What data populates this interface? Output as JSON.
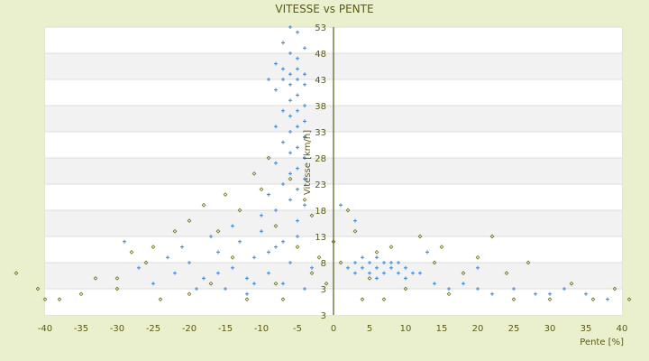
{
  "chart_data": {
    "type": "scatter",
    "title": "VITESSE vs PENTE",
    "xlabel": "Pente [%]",
    "ylabel": "Vitesse [km/h]",
    "xlim": [
      -40,
      40
    ],
    "ylim": [
      -2,
      53
    ],
    "x_ticks": [
      "-40",
      "-35",
      "-30",
      "-25",
      "-20",
      "-15",
      "-10",
      "-5",
      "0",
      "5",
      "10",
      "15",
      "20",
      "25",
      "30",
      "35",
      "40"
    ],
    "y_ticks": [
      "53",
      "48",
      "43",
      "38",
      "33",
      "28",
      "23",
      "18",
      "13",
      "8",
      "3",
      "3"
    ],
    "grid": true,
    "series": [
      {
        "name": "blue",
        "color": "#3a86d6",
        "marker": "plus",
        "points": [
          [
            -6,
            53
          ],
          [
            -5,
            52
          ],
          [
            -7,
            50
          ],
          [
            -4,
            49
          ],
          [
            -6,
            48
          ],
          [
            -5,
            47
          ],
          [
            -8,
            46
          ],
          [
            -7,
            45
          ],
          [
            -5,
            45
          ],
          [
            -6,
            44
          ],
          [
            -4,
            44
          ],
          [
            -9,
            43
          ],
          [
            -7,
            43
          ],
          [
            -5,
            43
          ],
          [
            -6,
            42
          ],
          [
            -4,
            42
          ],
          [
            -8,
            41
          ],
          [
            -5,
            40
          ],
          [
            -6,
            39
          ],
          [
            -4,
            38
          ],
          [
            -7,
            37
          ],
          [
            -5,
            37
          ],
          [
            -6,
            36
          ],
          [
            -4,
            35
          ],
          [
            -8,
            34
          ],
          [
            -5,
            34
          ],
          [
            -6,
            33
          ],
          [
            -4,
            32
          ],
          [
            -7,
            31
          ],
          [
            -5,
            30
          ],
          [
            -6,
            29
          ],
          [
            -4,
            28
          ],
          [
            -8,
            27
          ],
          [
            -5,
            26
          ],
          [
            -6,
            25
          ],
          [
            -4,
            24
          ],
          [
            -7,
            23
          ],
          [
            -5,
            22
          ],
          [
            -9,
            21
          ],
          [
            -6,
            20
          ],
          [
            -4,
            19
          ],
          [
            -8,
            18
          ],
          [
            -10,
            17
          ],
          [
            -5,
            16
          ],
          [
            -25,
            4
          ],
          [
            -22,
            6
          ],
          [
            -20,
            8
          ],
          [
            -18,
            5
          ],
          [
            -16,
            10
          ],
          [
            -15,
            3
          ],
          [
            -14,
            7
          ],
          [
            -13,
            12
          ],
          [
            -12,
            5
          ],
          [
            -11,
            9
          ],
          [
            -10,
            14
          ],
          [
            -9,
            6
          ],
          [
            -8,
            11
          ],
          [
            -7,
            4
          ],
          [
            -6,
            8
          ],
          [
            -5,
            13
          ],
          [
            -4,
            3
          ],
          [
            -3,
            7
          ],
          [
            -17,
            13
          ],
          [
            -19,
            3
          ],
          [
            -21,
            11
          ],
          [
            -23,
            9
          ],
          [
            -27,
            7
          ],
          [
            -29,
            12
          ],
          [
            -12,
            2
          ],
          [
            -14,
            15
          ],
          [
            -9,
            10
          ],
          [
            -11,
            4
          ],
          [
            -16,
            6
          ],
          [
            -7,
            12
          ],
          [
            3,
            8
          ],
          [
            4,
            7
          ],
          [
            5,
            8
          ],
          [
            6,
            7
          ],
          [
            7,
            6
          ],
          [
            8,
            7
          ],
          [
            9,
            6
          ],
          [
            10,
            7
          ],
          [
            11,
            6
          ],
          [
            4,
            9
          ],
          [
            6,
            9
          ],
          [
            8,
            8
          ],
          [
            5,
            6
          ],
          [
            7,
            8
          ],
          [
            9,
            8
          ],
          [
            12,
            6
          ],
          [
            3,
            6
          ],
          [
            10,
            5
          ],
          [
            2,
            7
          ],
          [
            6,
            5
          ],
          [
            14,
            4
          ],
          [
            16,
            3
          ],
          [
            18,
            4
          ],
          [
            20,
            3
          ],
          [
            22,
            2
          ],
          [
            25,
            3
          ],
          [
            28,
            2
          ],
          [
            30,
            2
          ],
          [
            32,
            3
          ],
          [
            35,
            2
          ],
          [
            38,
            1
          ],
          [
            13,
            10
          ],
          [
            20,
            7
          ],
          [
            1,
            19
          ],
          [
            3,
            16
          ]
        ]
      },
      {
        "name": "olive",
        "color": "#6b6b14",
        "marker": "diamond",
        "points": [
          [
            -41,
            3
          ],
          [
            -40,
            1
          ],
          [
            -38,
            1
          ],
          [
            -35,
            2
          ],
          [
            -33,
            5
          ],
          [
            -30,
            3
          ],
          [
            -28,
            10
          ],
          [
            -26,
            8
          ],
          [
            -24,
            1
          ],
          [
            -22,
            14
          ],
          [
            -20,
            16
          ],
          [
            -18,
            19
          ],
          [
            -17,
            4
          ],
          [
            -15,
            21
          ],
          [
            -13,
            18
          ],
          [
            -12,
            1
          ],
          [
            -11,
            25
          ],
          [
            -10,
            22
          ],
          [
            -9,
            28
          ],
          [
            -8,
            15
          ],
          [
            -7,
            1
          ],
          [
            -6,
            24
          ],
          [
            -5,
            11
          ],
          [
            -4,
            20
          ],
          [
            -3,
            6
          ],
          [
            -2,
            9
          ],
          [
            -1,
            4
          ],
          [
            0,
            12
          ],
          [
            1,
            8
          ],
          [
            2,
            18
          ],
          [
            3,
            14
          ],
          [
            4,
            1
          ],
          [
            5,
            5
          ],
          [
            6,
            10
          ],
          [
            7,
            1
          ],
          [
            8,
            11
          ],
          [
            10,
            3
          ],
          [
            12,
            13
          ],
          [
            14,
            8
          ],
          [
            16,
            2
          ],
          [
            18,
            6
          ],
          [
            20,
            9
          ],
          [
            22,
            13
          ],
          [
            24,
            6
          ],
          [
            25,
            1
          ],
          [
            27,
            8
          ],
          [
            30,
            1
          ],
          [
            33,
            4
          ],
          [
            36,
            1
          ],
          [
            39,
            3
          ],
          [
            41,
            1
          ],
          [
            -30,
            5
          ],
          [
            -20,
            2
          ],
          [
            -14,
            9
          ],
          [
            -8,
            4
          ],
          [
            -25,
            11
          ],
          [
            15,
            11
          ],
          [
            -16,
            14
          ],
          [
            -3,
            17
          ],
          [
            -44,
            6
          ]
        ]
      }
    ]
  }
}
